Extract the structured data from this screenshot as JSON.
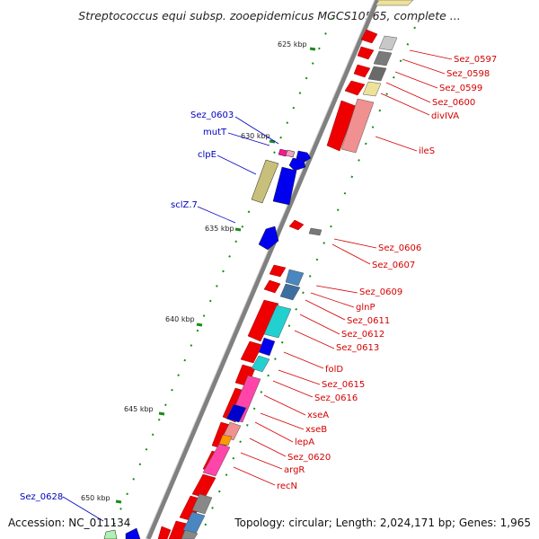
{
  "title": "Streptococcus equi subsp. zooepidemicus MGCS10565, complete ...",
  "accession": "Accession: NC_011134",
  "summary": "Topology: circular; Length: 2,024,171 bp; Genes: 1,965",
  "colors": {
    "backbone": "#888888",
    "red_label": "#d40000",
    "blue_label": "#0000c0",
    "tick": "#1a8a1a"
  },
  "ticks": [
    "625 kbp",
    "630 kbp",
    "635 kbp",
    "640 kbp",
    "645 kbp",
    "650 kbp"
  ],
  "right_labels": [
    "Sez_0597",
    "Sez_0598",
    "Sez_0599",
    "Sez_0600",
    "divIVA",
    "ileS",
    "Sez_0606",
    "Sez_0607",
    "Sez_0609",
    "glnP",
    "Sez_0611",
    "Sez_0612",
    "Sez_0613",
    "folD",
    "Sez_0615",
    "Sez_0616",
    "xseA",
    "xseB",
    "lepA",
    "Sez_0620",
    "argR",
    "recN"
  ],
  "left_labels": [
    "Sez_0603",
    "mutT",
    "clpE",
    "sclZ.7",
    "Sez_0628"
  ]
}
